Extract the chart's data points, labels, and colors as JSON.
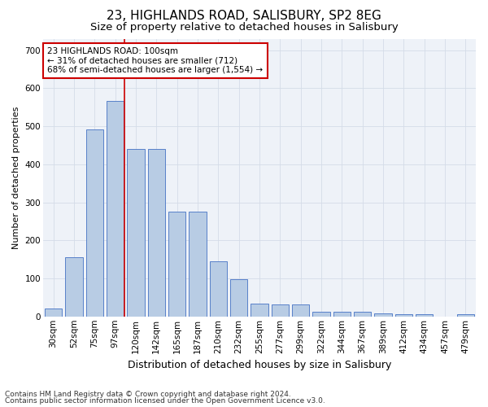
{
  "title1": "23, HIGHLANDS ROAD, SALISBURY, SP2 8EG",
  "title2": "Size of property relative to detached houses in Salisbury",
  "xlabel": "Distribution of detached houses by size in Salisbury",
  "ylabel": "Number of detached properties",
  "categories": [
    "30sqm",
    "52sqm",
    "75sqm",
    "97sqm",
    "120sqm",
    "142sqm",
    "165sqm",
    "187sqm",
    "210sqm",
    "232sqm",
    "255sqm",
    "277sqm",
    "299sqm",
    "322sqm",
    "344sqm",
    "367sqm",
    "389sqm",
    "412sqm",
    "434sqm",
    "457sqm",
    "479sqm"
  ],
  "values": [
    20,
    155,
    492,
    567,
    440,
    440,
    275,
    275,
    145,
    97,
    33,
    32,
    32,
    12,
    12,
    12,
    8,
    5,
    5,
    0,
    5
  ],
  "bar_color": "#b8cce4",
  "bar_edge_color": "#4472c4",
  "red_line_x": 3.43,
  "annotation_lines": [
    "23 HIGHLANDS ROAD: 100sqm",
    "← 31% of detached houses are smaller (712)",
    "68% of semi-detached houses are larger (1,554) →"
  ],
  "annotation_box_color": "#ffffff",
  "annotation_box_edge": "#cc0000",
  "red_line_color": "#cc0000",
  "ylim": [
    0,
    730
  ],
  "yticks": [
    0,
    100,
    200,
    300,
    400,
    500,
    600,
    700
  ],
  "grid_color": "#d4dce8",
  "background_color": "#eef2f8",
  "footnote1": "Contains HM Land Registry data © Crown copyright and database right 2024.",
  "footnote2": "Contains public sector information licensed under the Open Government Licence v3.0.",
  "title1_fontsize": 11,
  "title2_fontsize": 9.5,
  "xlabel_fontsize": 9,
  "ylabel_fontsize": 8,
  "tick_fontsize": 7.5,
  "annotation_fontsize": 7.5,
  "footnote_fontsize": 6.5
}
